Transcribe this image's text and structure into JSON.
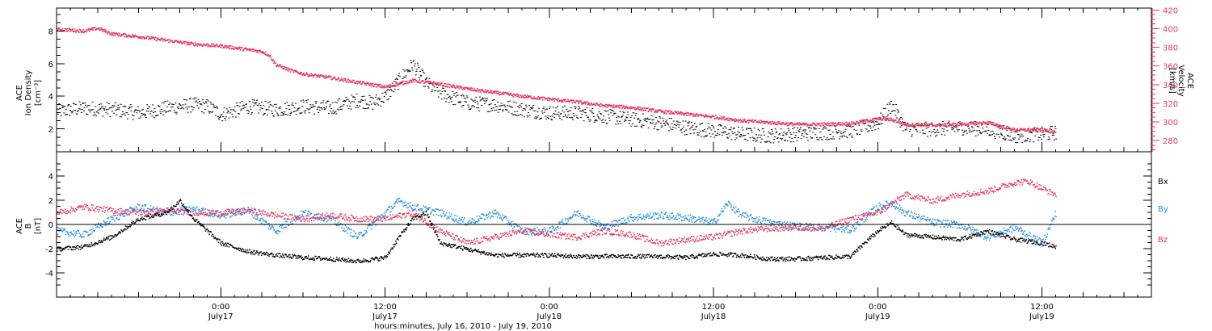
{
  "colors": {
    "density": "#000000",
    "velocity": "#e8365d",
    "bx": "#000000",
    "by": "#1e8ce6",
    "bz": "#e8365d"
  },
  "top_panel": {
    "left_axis_title": [
      "ACE",
      "Ion Density",
      "[cm⁻³]"
    ],
    "right_axis_title": [
      "ACE",
      "Velocity",
      "[km/s]"
    ]
  },
  "bottom_panel": {
    "axis_title": [
      "ACE",
      "B",
      "[nT]"
    ],
    "legend": [
      "Bx",
      "By",
      "Bz"
    ]
  },
  "x_axis": {
    "ticks": [
      {
        "time": "0:00",
        "date": "July17",
        "hours": 24
      },
      {
        "time": "12:00",
        "date": "July17",
        "hours": 36
      },
      {
        "time": "0:00",
        "date": "July18",
        "hours": 48
      },
      {
        "time": "12:00",
        "date": "July18",
        "hours": 60
      },
      {
        "time": "0:00",
        "date": "July19",
        "hours": 72
      },
      {
        "time": "12:00",
        "date": "July19",
        "hours": 84
      }
    ],
    "label": "hours:minutes, July 16, 2010 - July 19, 2010"
  },
  "chart_data": [
    {
      "type": "scatter",
      "panel": "top",
      "x_range_hours": [
        12,
        92
      ],
      "left_ylim": [
        0.6,
        9.4
      ],
      "left_ticks": [
        "2",
        "4",
        "6",
        "8"
      ],
      "right_ylim": [
        268,
        422
      ],
      "right_ticks": [
        "280",
        "300",
        "320",
        "340",
        "360",
        "380",
        "400",
        "420"
      ],
      "series": [
        {
          "name": "Density",
          "axis": "left",
          "points": [
            [
              12,
              3.1
            ],
            [
              14,
              3.3
            ],
            [
              16,
              3.2
            ],
            [
              18,
              3.0
            ],
            [
              20,
              3.3
            ],
            [
              22,
              3.5
            ],
            [
              23,
              3.4
            ],
            [
              24,
              2.9
            ],
            [
              26,
              3.4
            ],
            [
              28,
              3.2
            ],
            [
              30,
              3.4
            ],
            [
              32,
              3.3
            ],
            [
              34,
              3.8
            ],
            [
              35,
              3.6
            ],
            [
              36,
              4.0
            ],
            [
              37,
              5.0
            ],
            [
              38,
              6.0
            ],
            [
              39,
              4.8
            ],
            [
              40,
              4.2
            ],
            [
              42,
              3.6
            ],
            [
              44,
              3.5
            ],
            [
              46,
              3.2
            ],
            [
              48,
              3.0
            ],
            [
              50,
              3.0
            ],
            [
              52,
              2.8
            ],
            [
              54,
              2.6
            ],
            [
              56,
              2.4
            ],
            [
              58,
              2.1
            ],
            [
              60,
              1.9
            ],
            [
              62,
              1.7
            ],
            [
              64,
              1.6
            ],
            [
              66,
              1.7
            ],
            [
              68,
              1.8
            ],
            [
              70,
              1.9
            ],
            [
              72,
              2.4
            ],
            [
              73,
              3.5
            ],
            [
              74,
              2.0
            ],
            [
              76,
              2.0
            ],
            [
              78,
              2.1
            ],
            [
              80,
              2.0
            ],
            [
              82,
              1.6
            ],
            [
              84,
              1.7
            ],
            [
              85,
              1.8
            ]
          ]
        },
        {
          "name": "Velocity",
          "axis": "right",
          "points": [
            [
              12,
              400
            ],
            [
              14,
              398
            ],
            [
              15,
              401
            ],
            [
              16,
              395
            ],
            [
              18,
              392
            ],
            [
              20,
              388
            ],
            [
              22,
              384
            ],
            [
              24,
              382
            ],
            [
              26,
              378
            ],
            [
              27,
              376
            ],
            [
              27.5,
              372
            ],
            [
              28,
              362
            ],
            [
              29,
              356
            ],
            [
              30,
              352
            ],
            [
              32,
              348
            ],
            [
              34,
              343
            ],
            [
              36,
              338
            ],
            [
              38,
              345
            ],
            [
              40,
              341
            ],
            [
              42,
              336
            ],
            [
              44,
              332
            ],
            [
              46,
              328
            ],
            [
              48,
              325
            ],
            [
              50,
              322
            ],
            [
              52,
              318
            ],
            [
              54,
              316
            ],
            [
              56,
              312
            ],
            [
              58,
              309
            ],
            [
              60,
              306
            ],
            [
              62,
              302
            ],
            [
              64,
              300
            ],
            [
              66,
              298
            ],
            [
              68,
              298
            ],
            [
              70,
              299
            ],
            [
              72,
              304
            ],
            [
              73,
              303
            ],
            [
              74,
              298
            ],
            [
              76,
              297
            ],
            [
              78,
              298
            ],
            [
              80,
              300
            ],
            [
              82,
              292
            ],
            [
              84,
              292
            ],
            [
              85,
              290
            ]
          ]
        }
      ]
    },
    {
      "type": "scatter",
      "panel": "bottom",
      "x_range_hours": [
        12,
        92
      ],
      "ylim": [
        -6,
        6
      ],
      "y_ticks": [
        "-4",
        "-2",
        "0",
        "2",
        "4"
      ],
      "series": [
        {
          "name": "Bx",
          "points": [
            [
              12,
              -2.0
            ],
            [
              14,
              -1.8
            ],
            [
              16,
              -1.0
            ],
            [
              18,
              0.5
            ],
            [
              20,
              1.0
            ],
            [
              21,
              2.0
            ],
            [
              22,
              0.5
            ],
            [
              24,
              -1.5
            ],
            [
              26,
              -2.2
            ],
            [
              28,
              -2.5
            ],
            [
              30,
              -2.7
            ],
            [
              32,
              -2.8
            ],
            [
              34,
              -3.0
            ],
            [
              36,
              -2.7
            ],
            [
              37,
              -1.0
            ],
            [
              38,
              0.5
            ],
            [
              39,
              1.0
            ],
            [
              40,
              -1.5
            ],
            [
              42,
              -2.0
            ],
            [
              44,
              -2.5
            ],
            [
              46,
              -2.5
            ],
            [
              48,
              -2.5
            ],
            [
              50,
              -2.6
            ],
            [
              52,
              -2.6
            ],
            [
              54,
              -2.6
            ],
            [
              56,
              -2.6
            ],
            [
              58,
              -2.7
            ],
            [
              60,
              -2.4
            ],
            [
              62,
              -2.5
            ],
            [
              64,
              -2.8
            ],
            [
              66,
              -2.8
            ],
            [
              68,
              -2.7
            ],
            [
              70,
              -2.6
            ],
            [
              71,
              -1.5
            ],
            [
              72,
              -0.5
            ],
            [
              73,
              0.2
            ],
            [
              74,
              -0.8
            ],
            [
              76,
              -1.0
            ],
            [
              78,
              -1.2
            ],
            [
              80,
              -0.5
            ],
            [
              82,
              -1.2
            ],
            [
              84,
              -1.5
            ],
            [
              85,
              -1.8
            ]
          ]
        },
        {
          "name": "By",
          "points": [
            [
              12,
              -0.5
            ],
            [
              14,
              -0.8
            ],
            [
              16,
              0.5
            ],
            [
              18,
              1.5
            ],
            [
              20,
              1.0
            ],
            [
              22,
              1.3
            ],
            [
              24,
              0.8
            ],
            [
              26,
              1.2
            ],
            [
              28,
              -0.5
            ],
            [
              30,
              1.0
            ],
            [
              32,
              0.5
            ],
            [
              34,
              -1.0
            ],
            [
              36,
              1.0
            ],
            [
              37,
              2.0
            ],
            [
              38,
              1.5
            ],
            [
              40,
              1.0
            ],
            [
              42,
              0.2
            ],
            [
              44,
              1.0
            ],
            [
              46,
              -0.5
            ],
            [
              48,
              -0.5
            ],
            [
              50,
              1.0
            ],
            [
              52,
              -0.2
            ],
            [
              54,
              0.6
            ],
            [
              56,
              0.8
            ],
            [
              58,
              0.6
            ],
            [
              60,
              0.2
            ],
            [
              61,
              1.8
            ],
            [
              62,
              0.8
            ],
            [
              64,
              0.2
            ],
            [
              66,
              -0.1
            ],
            [
              68,
              -0.2
            ],
            [
              70,
              -0.4
            ],
            [
              72,
              1.5
            ],
            [
              73,
              1.8
            ],
            [
              74,
              1.0
            ],
            [
              76,
              0.2
            ],
            [
              78,
              0.0
            ],
            [
              80,
              -1.0
            ],
            [
              82,
              -0.2
            ],
            [
              84,
              -1.5
            ],
            [
              85,
              1.0
            ]
          ]
        },
        {
          "name": "Bz",
          "points": [
            [
              12,
              1.0
            ],
            [
              14,
              1.5
            ],
            [
              16,
              1.2
            ],
            [
              18,
              1.0
            ],
            [
              20,
              1.2
            ],
            [
              22,
              1.0
            ],
            [
              24,
              1.0
            ],
            [
              26,
              1.2
            ],
            [
              28,
              0.8
            ],
            [
              30,
              0.5
            ],
            [
              32,
              0.8
            ],
            [
              34,
              0.5
            ],
            [
              36,
              0.5
            ],
            [
              38,
              1.0
            ],
            [
              40,
              -0.5
            ],
            [
              42,
              -1.5
            ],
            [
              44,
              -1.0
            ],
            [
              46,
              -0.5
            ],
            [
              48,
              -0.8
            ],
            [
              50,
              -1.0
            ],
            [
              52,
              -0.5
            ],
            [
              54,
              -0.8
            ],
            [
              56,
              -1.5
            ],
            [
              58,
              -1.2
            ],
            [
              60,
              -1.0
            ],
            [
              62,
              -0.5
            ],
            [
              64,
              -0.3
            ],
            [
              66,
              -0.2
            ],
            [
              68,
              -0.3
            ],
            [
              70,
              0.5
            ],
            [
              72,
              1.0
            ],
            [
              74,
              2.5
            ],
            [
              76,
              2.0
            ],
            [
              78,
              2.5
            ],
            [
              80,
              2.8
            ],
            [
              82,
              3.5
            ],
            [
              83,
              3.6
            ],
            [
              84,
              3.0
            ],
            [
              85,
              2.5
            ]
          ]
        }
      ]
    }
  ]
}
